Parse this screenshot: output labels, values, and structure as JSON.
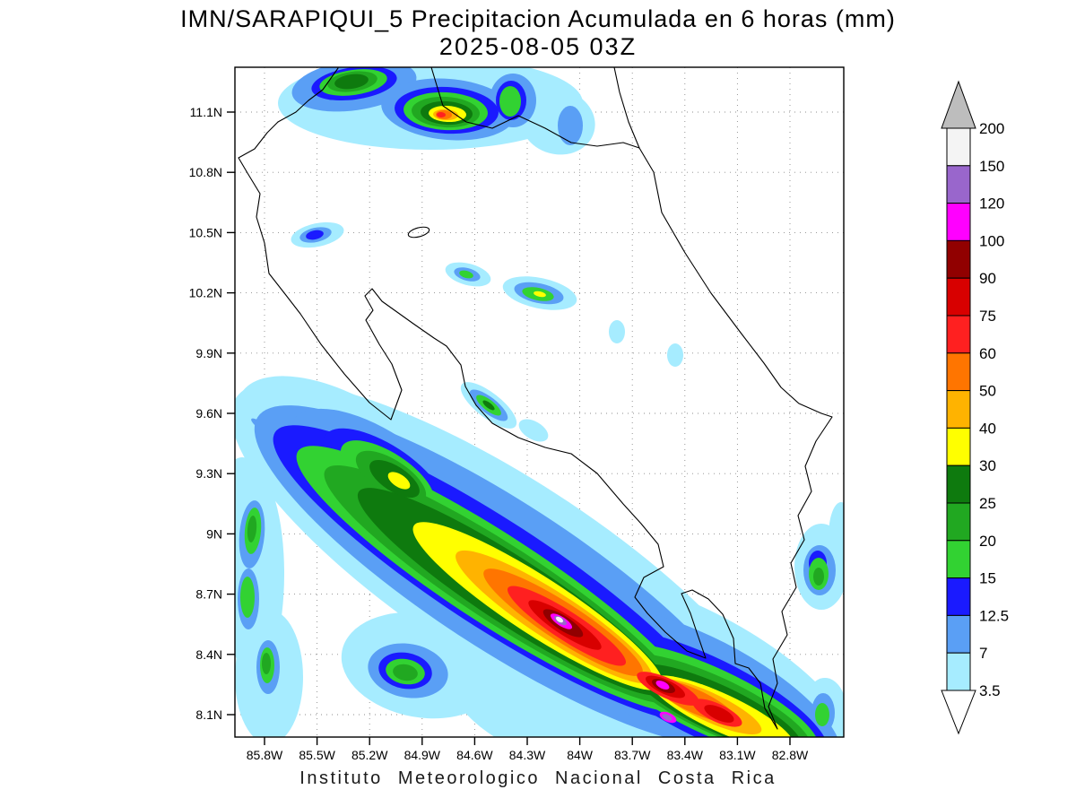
{
  "title": {
    "line1": "IMN/SARAPIQUI_5 Precipitacion Acumulada en 6 horas (mm)",
    "line2": "2025-08-05 03Z"
  },
  "footer": "Instituto Meteorologico Nacional Costa Rica",
  "axes": {
    "y_ticks": [
      "11.1N",
      "10.8N",
      "10.5N",
      "10.2N",
      "9.9N",
      "9.6N",
      "9.3N",
      "9N",
      "8.7N",
      "8.4N",
      "8.1N"
    ],
    "x_ticks": [
      "85.8W",
      "85.5W",
      "85.2W",
      "84.9W",
      "84.6W",
      "84.3W",
      "84W",
      "83.7W",
      "83.4W",
      "83.1W",
      "82.8W"
    ]
  },
  "colorbar": {
    "labels_top_to_bottom": [
      "200",
      "150",
      "120",
      "100",
      "90",
      "75",
      "60",
      "50",
      "40",
      "30",
      "25",
      "20",
      "15",
      "12.5",
      "7",
      "3.5"
    ],
    "colors_low_to_high": {
      "lv0": "#a6ecff",
      "lv1": "#5a9ff5",
      "lv2": "#1a1aff",
      "lv3": "#32d232",
      "lv4": "#21a821",
      "lv5": "#0e7a0e",
      "lv6": "#ffff00",
      "lv7": "#ffb300",
      "lv8": "#ff7500",
      "lv9": "#ff2020",
      "lv10": "#d80000",
      "lv11": "#910000",
      "lv12": "#ff00ff",
      "lv13": "#9966cc",
      "lv14": "#f4f4f4"
    },
    "over_color": "#bdbdbd",
    "under_color": "#ffffff"
  },
  "chart_data": {
    "type": "heatmap",
    "title": "IMN/SARAPIQUI_5 Precipitacion Acumulada en 6 horas (mm)",
    "subtitle": "2025-08-05 03Z",
    "variable": "6-hour accumulated precipitation",
    "units": "mm",
    "source_caption": "Instituto Meteorologico Nacional Costa Rica",
    "x_tick_labels": [
      "85.8W",
      "85.5W",
      "85.2W",
      "84.9W",
      "84.6W",
      "84.3W",
      "84W",
      "83.7W",
      "83.4W",
      "83.1W",
      "82.8W"
    ],
    "y_tick_labels": [
      "11.1N",
      "10.8N",
      "10.5N",
      "10.2N",
      "9.9N",
      "9.6N",
      "9.3N",
      "9N",
      "8.7N",
      "8.4N",
      "8.1N"
    ],
    "x_range_lon_w": [
      85.97,
      82.5
    ],
    "y_range_lat_n": [
      7.99,
      11.33
    ],
    "grid": true,
    "legend_position": "right",
    "contour_levels_mm": [
      3.5,
      7,
      12.5,
      15,
      20,
      25,
      30,
      40,
      50,
      60,
      75,
      90,
      100,
      120,
      150,
      200
    ],
    "palette_low_to_high": [
      "#a6ecff",
      "#5a9ff5",
      "#1a1aff",
      "#32d232",
      "#21a821",
      "#0e7a0e",
      "#ffff00",
      "#ffb300",
      "#ff7500",
      "#ff2020",
      "#d80000",
      "#910000",
      "#ff00ff",
      "#9966cc",
      "#f4f4f4"
    ],
    "basemap": "Costa Rica coastline and borders (black outline)",
    "features": [
      {
        "name": "northern-border-storm-cluster",
        "lat": "11.0N-11.3N",
        "lon": "85.4W-84.3W",
        "peak_mm": 75,
        "note": "multi-cell cluster along the Costa Rica-Nicaragua border; orange/red core near 84.8W 11.1N surrounded by yellow, green, blue and cyan rings"
      },
      {
        "name": "isolated-cell",
        "lat": "10.5N",
        "lon": "85.5W",
        "peak_mm": 15
      },
      {
        "name": "isolated-cell",
        "lat": "10.3N",
        "lon": "84.6W",
        "peak_mm": 20
      },
      {
        "name": "isolated-cell",
        "lat": "10.2N",
        "lon": "84.25W",
        "peak_mm": 30,
        "note": "green cell with small yellow core"
      },
      {
        "name": "small-cell",
        "lat": "9.9N",
        "lon": "83.45W",
        "peak_mm": 7
      },
      {
        "name": "isolated-cell",
        "lat": "9.6N",
        "lon": "84.5W",
        "peak_mm": 25,
        "note": "elongated NE-SW green cell"
      },
      {
        "name": "pacific-offshore-rainband",
        "lat": "9.4N to 8.0N",
        "lon": "85.8W to 83.0W",
        "peak_mm": 200,
        "note": "broad SW-NE oriented rainband along/off the southern Pacific coast; yellow-orange-red interior with maroon/magenta/purple cores; small >150 mm (white) spot near 8.55N 84.1W and magenta cores near 8.25N 83.5W and 8.1N 83.5W"
      },
      {
        "name": "western-edge-bands",
        "lat": "8.1N-9.3N",
        "lon": "85.8W-86.0W",
        "peak_mm": 25,
        "note": "meridional cyan/blue strips with green cores at the left map edge"
      },
      {
        "name": "caribbean-southeast-cells",
        "lat": "8.1N-8.9N",
        "lon": "82.6W-82.8W",
        "peak_mm": 25,
        "note": "cells near right map edge with green/blue cores"
      }
    ]
  }
}
